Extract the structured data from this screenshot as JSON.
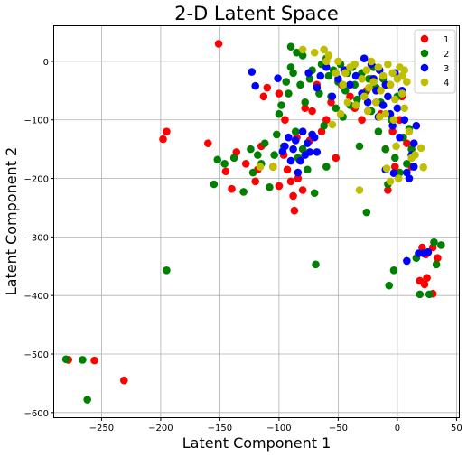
{
  "chart_data": {
    "type": "scatter",
    "title": "2-D Latent Space",
    "xlabel": "Latent Component 1",
    "ylabel": "Latent Component 2",
    "xlim": [
      -290,
      52
    ],
    "ylim": [
      -608,
      60
    ],
    "xticks": [
      -250,
      -200,
      -150,
      -100,
      -50,
      0,
      50
    ],
    "yticks": [
      0,
      -100,
      -200,
      -300,
      -400,
      -500,
      -600
    ],
    "grid": true,
    "legend_position": "top-right",
    "series": [
      {
        "name": "1",
        "color": "#ff0000",
        "points": [
          [
            -151,
            30
          ],
          [
            -278,
            -510
          ],
          [
            -256,
            -511
          ],
          [
            -231,
            -545
          ],
          [
            -198,
            -133
          ],
          [
            -195,
            -120
          ],
          [
            -160,
            -140
          ],
          [
            -145,
            -188
          ],
          [
            -140,
            -218
          ],
          [
            -136,
            -155
          ],
          [
            -128,
            -175
          ],
          [
            -120,
            -205
          ],
          [
            -118,
            -185
          ],
          [
            -115,
            -145
          ],
          [
            -113,
            -60
          ],
          [
            -110,
            -45
          ],
          [
            -105,
            -180
          ],
          [
            -100,
            -213
          ],
          [
            -96,
            -160
          ],
          [
            -93,
            -185
          ],
          [
            -90,
            -205
          ],
          [
            -88,
            -230
          ],
          [
            -87,
            -255
          ],
          [
            -84,
            -200
          ],
          [
            -80,
            -220
          ],
          [
            -78,
            -80
          ],
          [
            -72,
            -85
          ],
          [
            -68,
            -40
          ],
          [
            -64,
            -120
          ],
          [
            -60,
            -100
          ],
          [
            -56,
            -70
          ],
          [
            -52,
            -165
          ],
          [
            -47,
            -40
          ],
          [
            -44,
            -15
          ],
          [
            -40,
            -60
          ],
          [
            -36,
            -80
          ],
          [
            -30,
            -100
          ],
          [
            -26,
            -50
          ],
          [
            -22,
            -30
          ],
          [
            -18,
            -70
          ],
          [
            -14,
            -90
          ],
          [
            -10,
            -150
          ],
          [
            -8,
            -220
          ],
          [
            -6,
            -40
          ],
          [
            -4,
            -120
          ],
          [
            -2,
            -180
          ],
          [
            2,
            -100
          ],
          [
            4,
            -60
          ],
          [
            8,
            -140
          ],
          [
            12,
            -180
          ],
          [
            -95,
            -100
          ],
          [
            -85,
            -130
          ],
          [
            -100,
            -55
          ],
          [
            -74,
            -135
          ],
          [
            21,
            -318
          ],
          [
            24,
            -330
          ],
          [
            30,
            -318
          ],
          [
            34,
            -336
          ],
          [
            19,
            -375
          ],
          [
            23,
            -381
          ],
          [
            25,
            -370
          ],
          [
            30,
            -397
          ]
        ]
      },
      {
        "name": "2",
        "color": "#008000",
        "points": [
          [
            -280,
            -509
          ],
          [
            -266,
            -510
          ],
          [
            -262,
            -578
          ],
          [
            -195,
            -357
          ],
          [
            -155,
            -210
          ],
          [
            -152,
            -168
          ],
          [
            -146,
            -175
          ],
          [
            -138,
            -165
          ],
          [
            -130,
            -223
          ],
          [
            -124,
            -150
          ],
          [
            -122,
            -190
          ],
          [
            -118,
            -160
          ],
          [
            -115,
            -175
          ],
          [
            -112,
            -140
          ],
          [
            -108,
            -215
          ],
          [
            -104,
            -160
          ],
          [
            -102,
            -125
          ],
          [
            -100,
            -90
          ],
          [
            -98,
            -75
          ],
          [
            -96,
            -145
          ],
          [
            -94,
            -35
          ],
          [
            -92,
            -55
          ],
          [
            -90,
            -10
          ],
          [
            -88,
            -20
          ],
          [
            -86,
            -120
          ],
          [
            -84,
            -165
          ],
          [
            -82,
            -40
          ],
          [
            -80,
            -150
          ],
          [
            -78,
            -70
          ],
          [
            -76,
            -185
          ],
          [
            -74,
            -30
          ],
          [
            -72,
            -15
          ],
          [
            -70,
            -225
          ],
          [
            -69,
            -347
          ],
          [
            -66,
            -55
          ],
          [
            -64,
            -5
          ],
          [
            -62,
            -110
          ],
          [
            -60,
            5
          ],
          [
            -58,
            -25
          ],
          [
            -56,
            -60
          ],
          [
            -54,
            -15
          ],
          [
            -52,
            -80
          ],
          [
            -50,
            -35
          ],
          [
            -48,
            -5
          ],
          [
            -46,
            -95
          ],
          [
            -44,
            -50
          ],
          [
            -42,
            -20
          ],
          [
            -40,
            -75
          ],
          [
            -38,
            -10
          ],
          [
            -36,
            -40
          ],
          [
            -34,
            -65
          ],
          [
            -32,
            -145
          ],
          [
            -30,
            -20
          ],
          [
            -28,
            -55
          ],
          [
            -26,
            -258
          ],
          [
            -24,
            -30
          ],
          [
            -22,
            -85
          ],
          [
            -20,
            -10
          ],
          [
            -18,
            -45
          ],
          [
            -16,
            -120
          ],
          [
            -14,
            -70
          ],
          [
            -12,
            -30
          ],
          [
            -10,
            -150
          ],
          [
            -8,
            -210
          ],
          [
            -7,
            -383
          ],
          [
            -5,
            -100
          ],
          [
            -3,
            -357
          ],
          [
            -2,
            -165
          ],
          [
            0,
            -60
          ],
          [
            2,
            -190
          ],
          [
            5,
            -130
          ],
          [
            8,
            -175
          ],
          [
            10,
            -115
          ],
          [
            12,
            -150
          ],
          [
            -90,
            25
          ],
          [
            -85,
            15
          ],
          [
            -80,
            10
          ],
          [
            -60,
            -180
          ],
          [
            16,
            -336
          ],
          [
            19,
            -398
          ],
          [
            27,
            -398
          ],
          [
            33,
            -347
          ],
          [
            31,
            -309
          ],
          [
            37,
            -314
          ]
        ]
      },
      {
        "name": "3",
        "color": "#0000ff",
        "points": [
          [
            -123,
            -18
          ],
          [
            -120,
            -42
          ],
          [
            -101,
            -29
          ],
          [
            -97,
            -154
          ],
          [
            -95,
            -145
          ],
          [
            -92,
            -130
          ],
          [
            -90,
            -170
          ],
          [
            -88,
            -150
          ],
          [
            -86,
            -135
          ],
          [
            -84,
            -190
          ],
          [
            -80,
            -120
          ],
          [
            -76,
            -140
          ],
          [
            -72,
            -125
          ],
          [
            -70,
            -130
          ],
          [
            -78,
            -160
          ],
          [
            -82,
            -170
          ],
          [
            -74,
            -155
          ],
          [
            -68,
            -155
          ],
          [
            -75,
            -20
          ],
          [
            -68,
            -45
          ],
          [
            -50,
            -30
          ],
          [
            -45,
            -15
          ],
          [
            -40,
            -40
          ],
          [
            -35,
            -25
          ],
          [
            -30,
            -55
          ],
          [
            -25,
            -70
          ],
          [
            -20,
            -30
          ],
          [
            -18,
            -50
          ],
          [
            -15,
            -15
          ],
          [
            -12,
            -75
          ],
          [
            -10,
            -40
          ],
          [
            -8,
            -60
          ],
          [
            -6,
            -90
          ],
          [
            -4,
            -110
          ],
          [
            -2,
            -20
          ],
          [
            0,
            -80
          ],
          [
            2,
            -130
          ],
          [
            4,
            -50
          ],
          [
            6,
            -100
          ],
          [
            8,
            -190
          ],
          [
            10,
            -200
          ],
          [
            12,
            -160
          ],
          [
            14,
            -140
          ],
          [
            16,
            -110
          ],
          [
            -55,
            -60
          ],
          [
            -60,
            -10
          ],
          [
            -65,
            -25
          ],
          [
            -28,
            5
          ],
          [
            -22,
            -5
          ],
          [
            -16,
            -95
          ],
          [
            -10,
            -185
          ],
          [
            14,
            -180
          ],
          [
            -3,
            -191
          ],
          [
            8,
            -341
          ],
          [
            18,
            -328
          ],
          [
            22,
            -328
          ],
          [
            26,
            -326
          ]
        ]
      },
      {
        "name": "4",
        "color": "#bfbf00",
        "points": [
          [
            -80,
            20
          ],
          [
            -70,
            15
          ],
          [
            -62,
            20
          ],
          [
            -58,
            10
          ],
          [
            -55,
            -108
          ],
          [
            -50,
            0
          ],
          [
            -46,
            -40
          ],
          [
            -44,
            -20
          ],
          [
            -40,
            -10
          ],
          [
            -36,
            -5
          ],
          [
            -32,
            -220
          ],
          [
            -30,
            -30
          ],
          [
            -28,
            -60
          ],
          [
            -26,
            -15
          ],
          [
            -24,
            -45
          ],
          [
            -22,
            0
          ],
          [
            -20,
            -35
          ],
          [
            -18,
            -70
          ],
          [
            -16,
            -10
          ],
          [
            -14,
            -50
          ],
          [
            -12,
            -25
          ],
          [
            -10,
            -90
          ],
          [
            -9,
            -183
          ],
          [
            -8,
            -5
          ],
          [
            -6,
            -40
          ],
          [
            -4,
            -20
          ],
          [
            -2,
            -65
          ],
          [
            0,
            -30
          ],
          [
            2,
            -10
          ],
          [
            4,
            -55
          ],
          [
            6,
            -80
          ],
          [
            8,
            -35
          ],
          [
            10,
            -120
          ],
          [
            12,
            -165
          ],
          [
            -3,
            -100
          ],
          [
            -1,
            -145
          ],
          [
            1,
            -200
          ],
          [
            -6,
            -205
          ],
          [
            -105,
            -180
          ],
          [
            -116,
            -180
          ],
          [
            20,
            -148
          ],
          [
            22,
            -181
          ],
          [
            15,
            -160
          ],
          [
            -35,
            -75
          ],
          [
            -25,
            -85
          ],
          [
            -15,
            -95
          ],
          [
            -48,
            -90
          ],
          [
            -42,
            -70
          ],
          [
            4,
            -25
          ],
          [
            6,
            -15
          ],
          [
            -60,
            0
          ],
          [
            -52,
            -20
          ]
        ]
      }
    ]
  }
}
